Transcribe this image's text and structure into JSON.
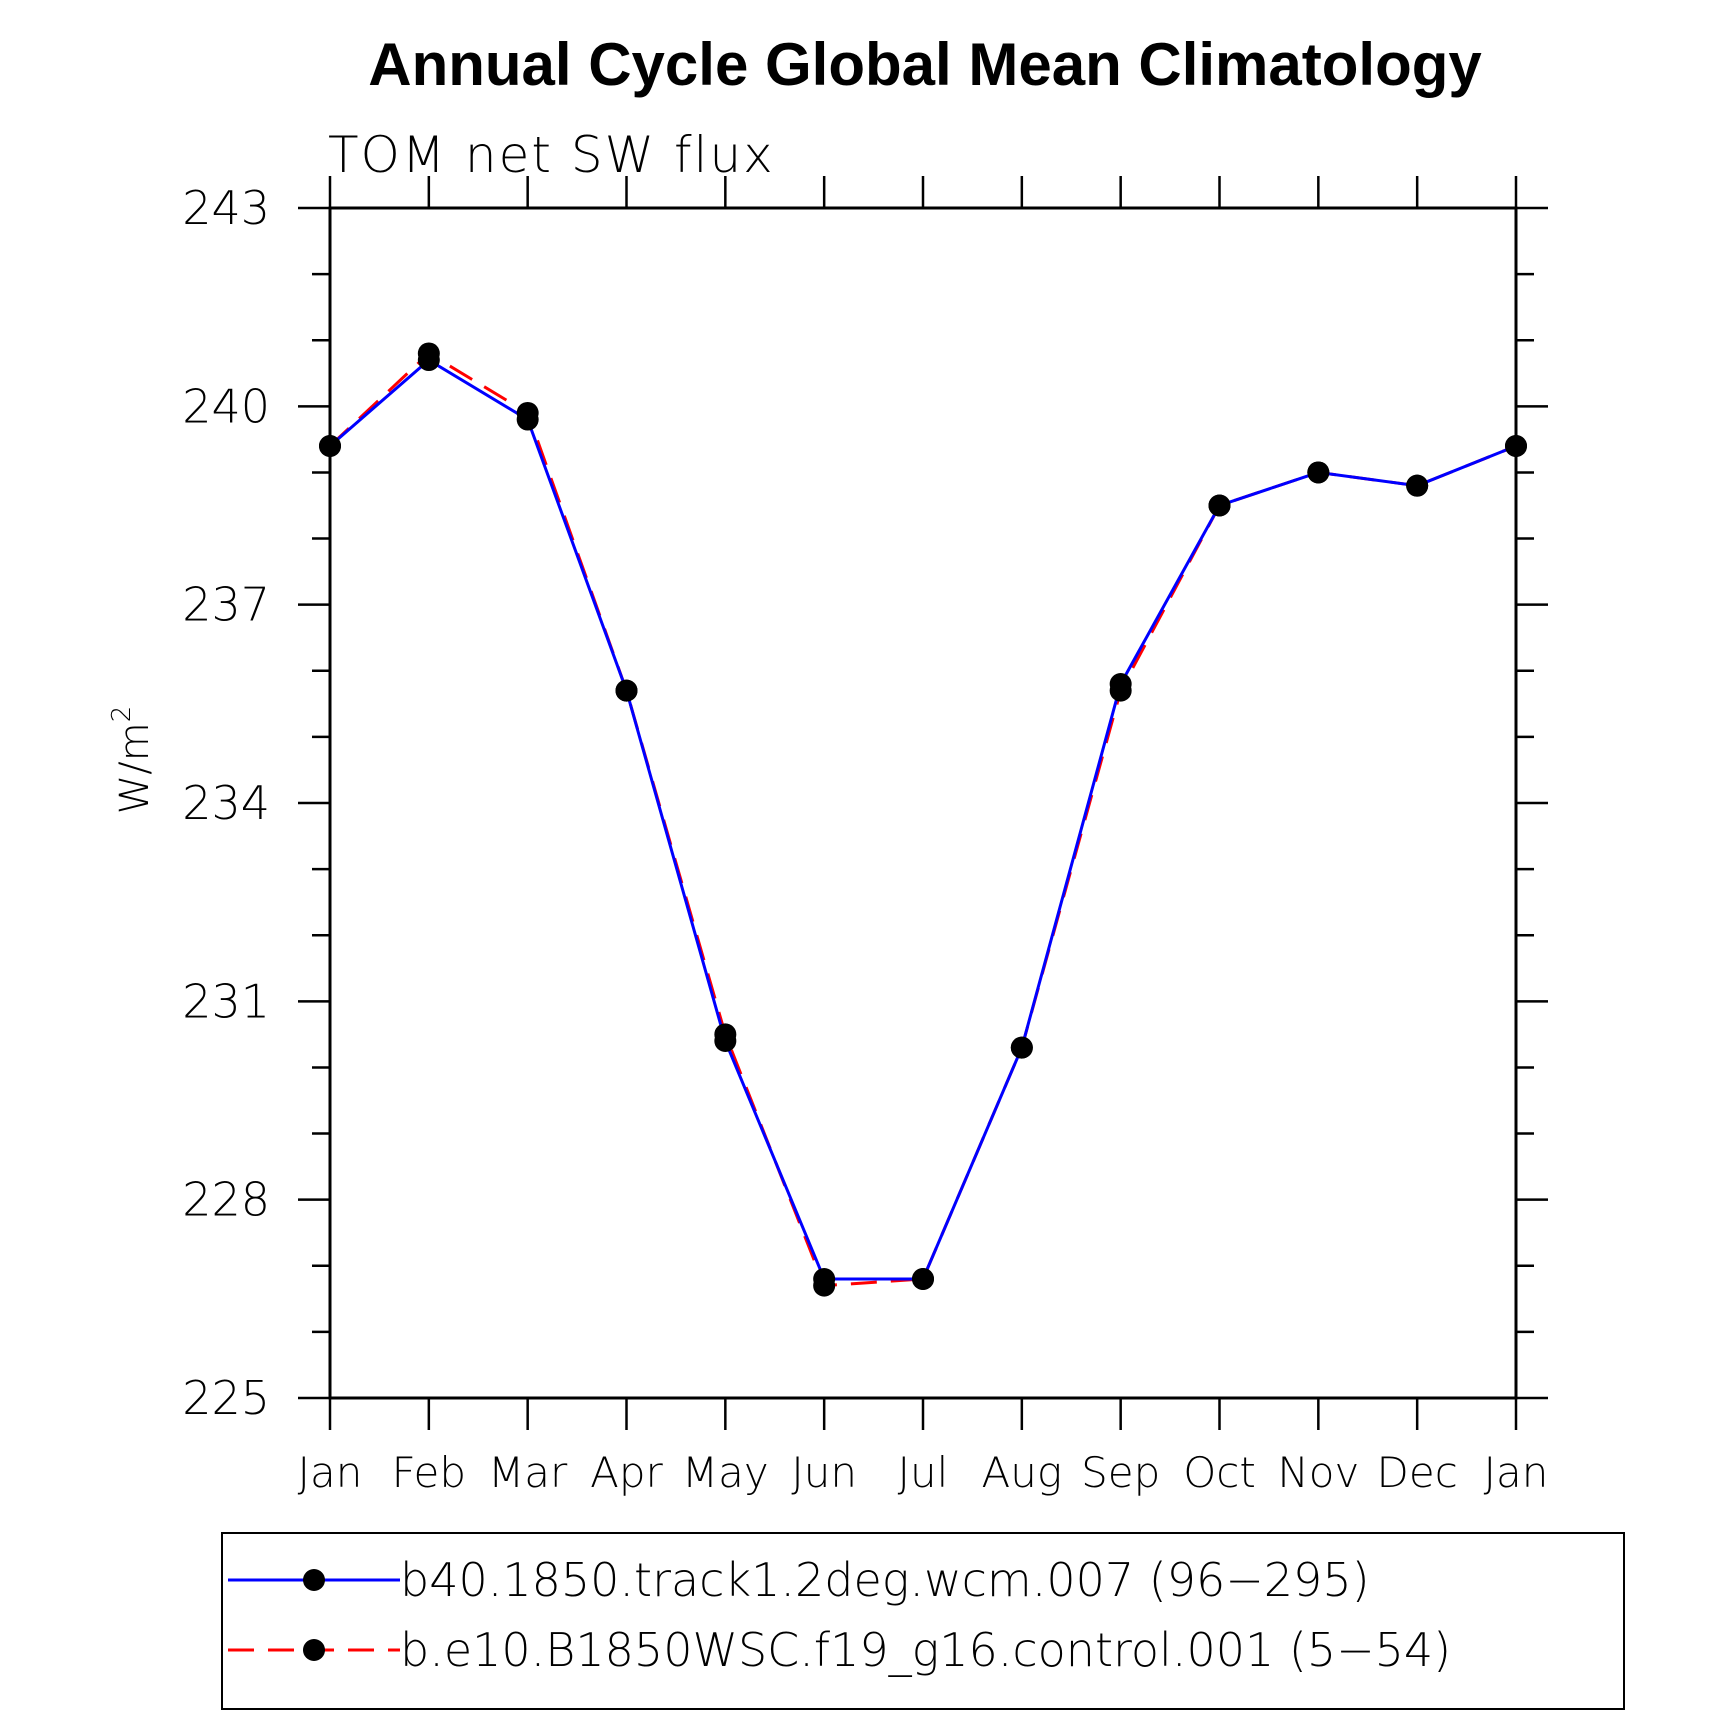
{
  "chart_data": {
    "type": "line",
    "title": "Annual Cycle Global Mean Climatology",
    "subtitle": "TOM net SW flux",
    "ylabel": "W/m",
    "ylabel_sup": "2",
    "xlabel": "",
    "categories": [
      "Jan",
      "Feb",
      "Mar",
      "Apr",
      "May",
      "Jun",
      "Jul",
      "Aug",
      "Sep",
      "Oct",
      "Nov",
      "Dec",
      "Jan"
    ],
    "ylim": [
      225,
      243
    ],
    "yticks": [
      "225",
      "228",
      "231",
      "234",
      "237",
      "240",
      "243"
    ],
    "grid": false,
    "legend_position": "bottom",
    "series": [
      {
        "name": "b40.1850.track1.2deg.wcm.007 (96−295)",
        "color": "#0000ff",
        "style": "solid",
        "marker": "filled-circle",
        "values": [
          239.4,
          240.7,
          239.8,
          235.7,
          230.4,
          226.8,
          226.8,
          230.3,
          235.8,
          238.5,
          239.0,
          238.8,
          239.4
        ]
      },
      {
        "name": "b.e10.B1850WSC.f19_g16.control.001 (5−54)",
        "color": "#ff0000",
        "style": "dashed",
        "marker": "filled-circle",
        "values": [
          239.4,
          240.8,
          239.9,
          235.7,
          230.5,
          226.7,
          226.8,
          230.3,
          235.7,
          238.5,
          239.0,
          238.8,
          239.4
        ]
      }
    ]
  }
}
